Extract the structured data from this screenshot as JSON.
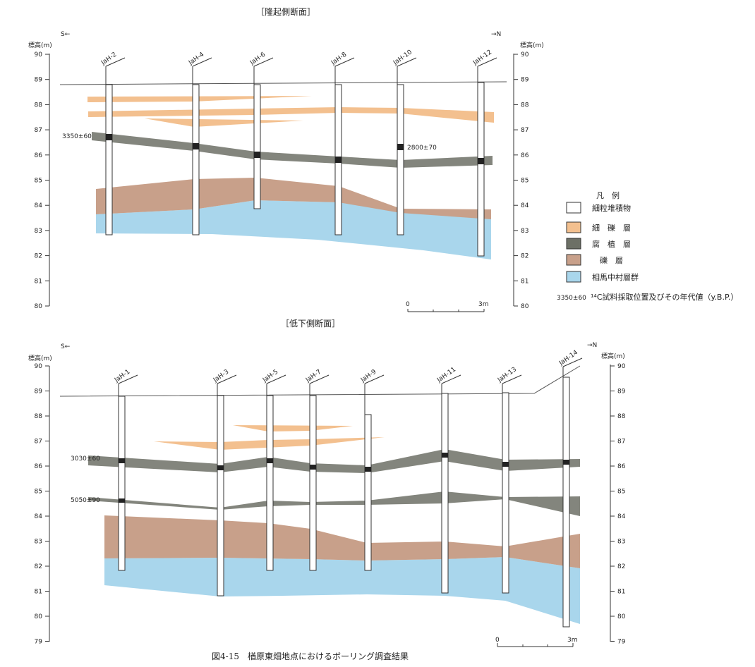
{
  "top_section": {
    "title": "［隆起側断面］",
    "dir_left": "S←",
    "dir_right": "→N",
    "ylabel_left": "標高(m)",
    "ylabel_right": "標高(m)",
    "ticks": [
      "90",
      "89",
      "88",
      "87",
      "86",
      "85",
      "84",
      "83",
      "82",
      "81",
      "80"
    ],
    "boreholes": [
      "JaH-2",
      "JaH-4",
      "JaH-6",
      "JaH-8",
      "JaH-10",
      "JaH-12"
    ],
    "dates": [
      "3350±60",
      "2800±70"
    ],
    "scale_start": "0",
    "scale_end": "3m"
  },
  "bottom_section": {
    "title": "［低下側断面］",
    "dir_left": "S←",
    "dir_right": "→N",
    "ylabel_left": "標高(m)",
    "ylabel_right": "標高(m)",
    "ticks": [
      "90",
      "89",
      "88",
      "87",
      "86",
      "85",
      "84",
      "83",
      "82",
      "81",
      "80",
      "79"
    ],
    "boreholes": [
      "JaH-1",
      "JaH-3",
      "JaH-5",
      "JaH-7",
      "JaH-9",
      "JaH-11",
      "JaH-13",
      "JaH-14"
    ],
    "dates": [
      "3030±60",
      "5050±90"
    ],
    "scale_start": "0",
    "scale_end": "3m"
  },
  "legend": {
    "title": "凡　例",
    "items": [
      {
        "label": "細粒堆積物",
        "color": "#ffffff"
      },
      {
        "label": "細　礫　層",
        "color": "#f3c08f"
      },
      {
        "label": "腐　植　層",
        "color": "#6d7066"
      },
      {
        "label": "礫　層",
        "color": "#c8a08a"
      },
      {
        "label": "相馬中村層群",
        "color": "#a9d6ec"
      }
    ],
    "c14_sample": "3350±60",
    "c14_text": "¹⁴C試料採取位置及びその年代値（y.B.P.）"
  },
  "caption": "図4-15　楢原東畑地点におけるボーリング調査結果",
  "colors": {
    "fine_gravel": "#f3c08f",
    "humus": "#6d7066",
    "gravel": "#c8a08a",
    "bedrock": "#a9d6ec",
    "line": "#333333"
  }
}
